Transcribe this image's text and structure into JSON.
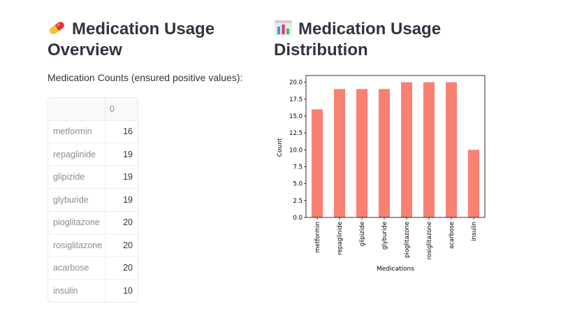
{
  "left_panel": {
    "title": "Medication Usage Overview",
    "title_icon": "pill-icon",
    "caption": "Medication Counts (ensured positive values):",
    "table": {
      "column_header": "0",
      "rows": [
        {
          "label": "metformin",
          "value": "16"
        },
        {
          "label": "repaglinide",
          "value": "19"
        },
        {
          "label": "glipizide",
          "value": "19"
        },
        {
          "label": "glyburide",
          "value": "19"
        },
        {
          "label": "pioglitazone",
          "value": "20"
        },
        {
          "label": "rosiglitazone",
          "value": "20"
        },
        {
          "label": "acarbose",
          "value": "20"
        },
        {
          "label": "insulin",
          "value": "10"
        }
      ]
    }
  },
  "right_panel": {
    "title": "Medication Usage Distribution",
    "title_icon": "bar-chart-icon"
  },
  "chart_data": {
    "type": "bar",
    "categories": [
      "metformin",
      "repaglinide",
      "glipizide",
      "glyburide",
      "pioglitazone",
      "rosiglitazone",
      "acarbose",
      "insulin"
    ],
    "values": [
      16,
      19,
      19,
      19,
      20,
      20,
      20,
      10
    ],
    "xlabel": "Medications",
    "ylabel": "Count",
    "ylim": [
      0,
      21
    ],
    "yticks": [
      "0.0",
      "2.5",
      "5.0",
      "7.5",
      "10.0",
      "12.5",
      "15.0",
      "17.5",
      "20.0"
    ],
    "bar_color": "#fa8072",
    "grid": false,
    "legend": "none"
  }
}
